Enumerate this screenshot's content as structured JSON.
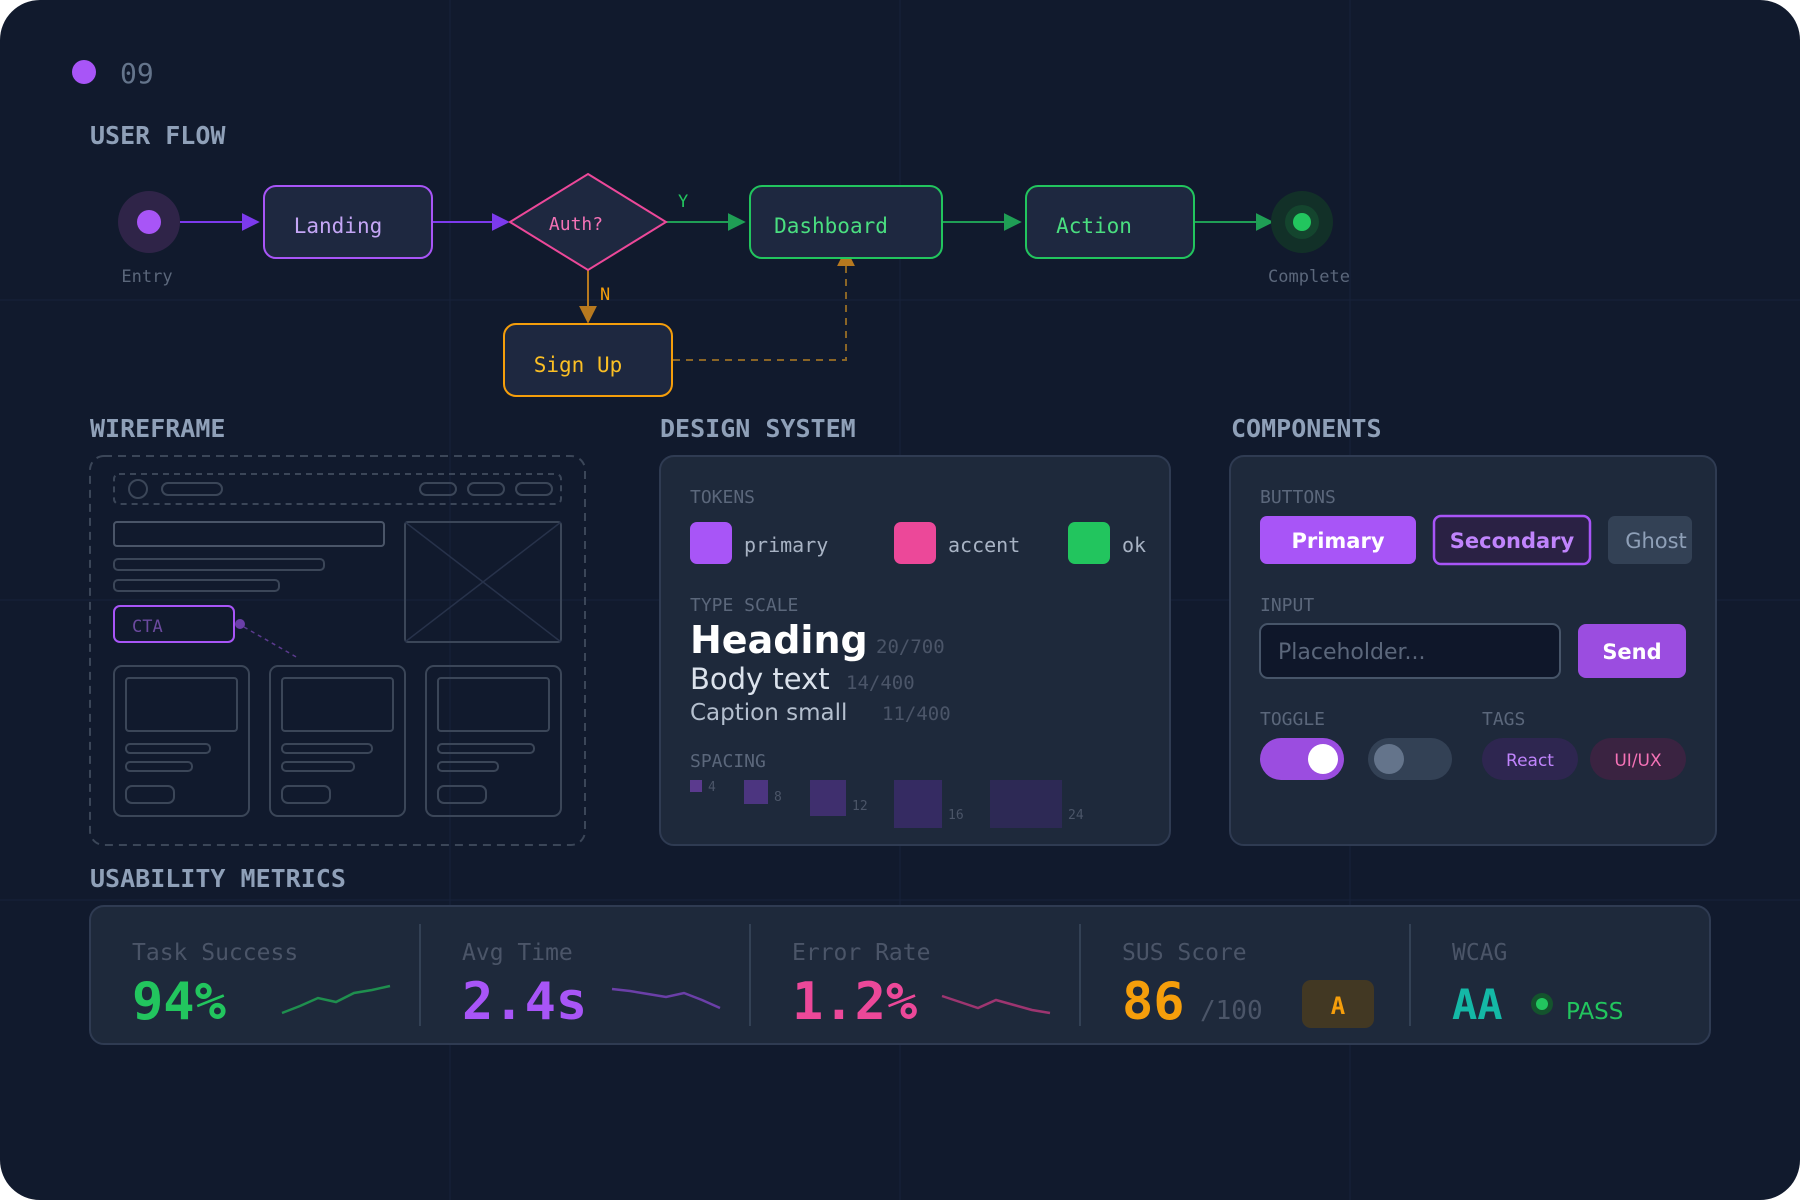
{
  "slide": {
    "number": "09",
    "accent": "#a855f7"
  },
  "sections": {
    "user_flow": "USER FLOW",
    "wireframe": "WIREFRAME",
    "design_system": "DESIGN SYSTEM",
    "components": "COMPONENTS",
    "usability_metrics": "USABILITY METRICS"
  },
  "flow": {
    "entry_label": "Entry",
    "complete_label": "Complete",
    "landing": "Landing",
    "auth": "Auth?",
    "yes": "Y",
    "no": "N",
    "dashboard": "Dashboard",
    "action": "Action",
    "signup": "Sign Up"
  },
  "wireframe": {
    "cta": "CTA"
  },
  "design_system": {
    "tokens_label": "TOKENS",
    "tokens": [
      {
        "name": "primary",
        "color": "#a855f7"
      },
      {
        "name": "accent",
        "color": "#ec4899"
      },
      {
        "name": "ok",
        "color": "#22c55e"
      }
    ],
    "type_scale_label": "TYPE SCALE",
    "heading": "Heading",
    "heading_spec": "20/700",
    "body": "Body text",
    "body_spec": "14/400",
    "caption": "Caption small",
    "caption_spec": "11/400",
    "spacing_label": "SPACING",
    "spacing": [
      "4",
      "8",
      "12",
      "16",
      "24"
    ]
  },
  "components": {
    "buttons_label": "BUTTONS",
    "primary": "Primary",
    "secondary": "Secondary",
    "ghost": "Ghost",
    "input_label": "INPUT",
    "input_placeholder": "Placeholder...",
    "send": "Send",
    "toggle_label": "TOGGLE",
    "toggle_on": true,
    "toggle_off": false,
    "tags_label": "TAGS",
    "tag_react": "React",
    "tag_uiux": "UI/UX"
  },
  "metrics": {
    "task_success": {
      "label": "Task Success",
      "value": "94%",
      "color": "#22c55e"
    },
    "avg_time": {
      "label": "Avg Time",
      "value": "2.4s",
      "color": "#a855f7"
    },
    "error_rate": {
      "label": "Error Rate",
      "value": "1.2%",
      "color": "#ec4899"
    },
    "sus": {
      "label": "SUS Score",
      "value": "86",
      "suffix": "/100",
      "grade": "A",
      "color": "#f59e0b"
    },
    "wcag": {
      "label": "WCAG",
      "value": "AA",
      "status": "PASS",
      "color": "#14b8a6"
    }
  }
}
